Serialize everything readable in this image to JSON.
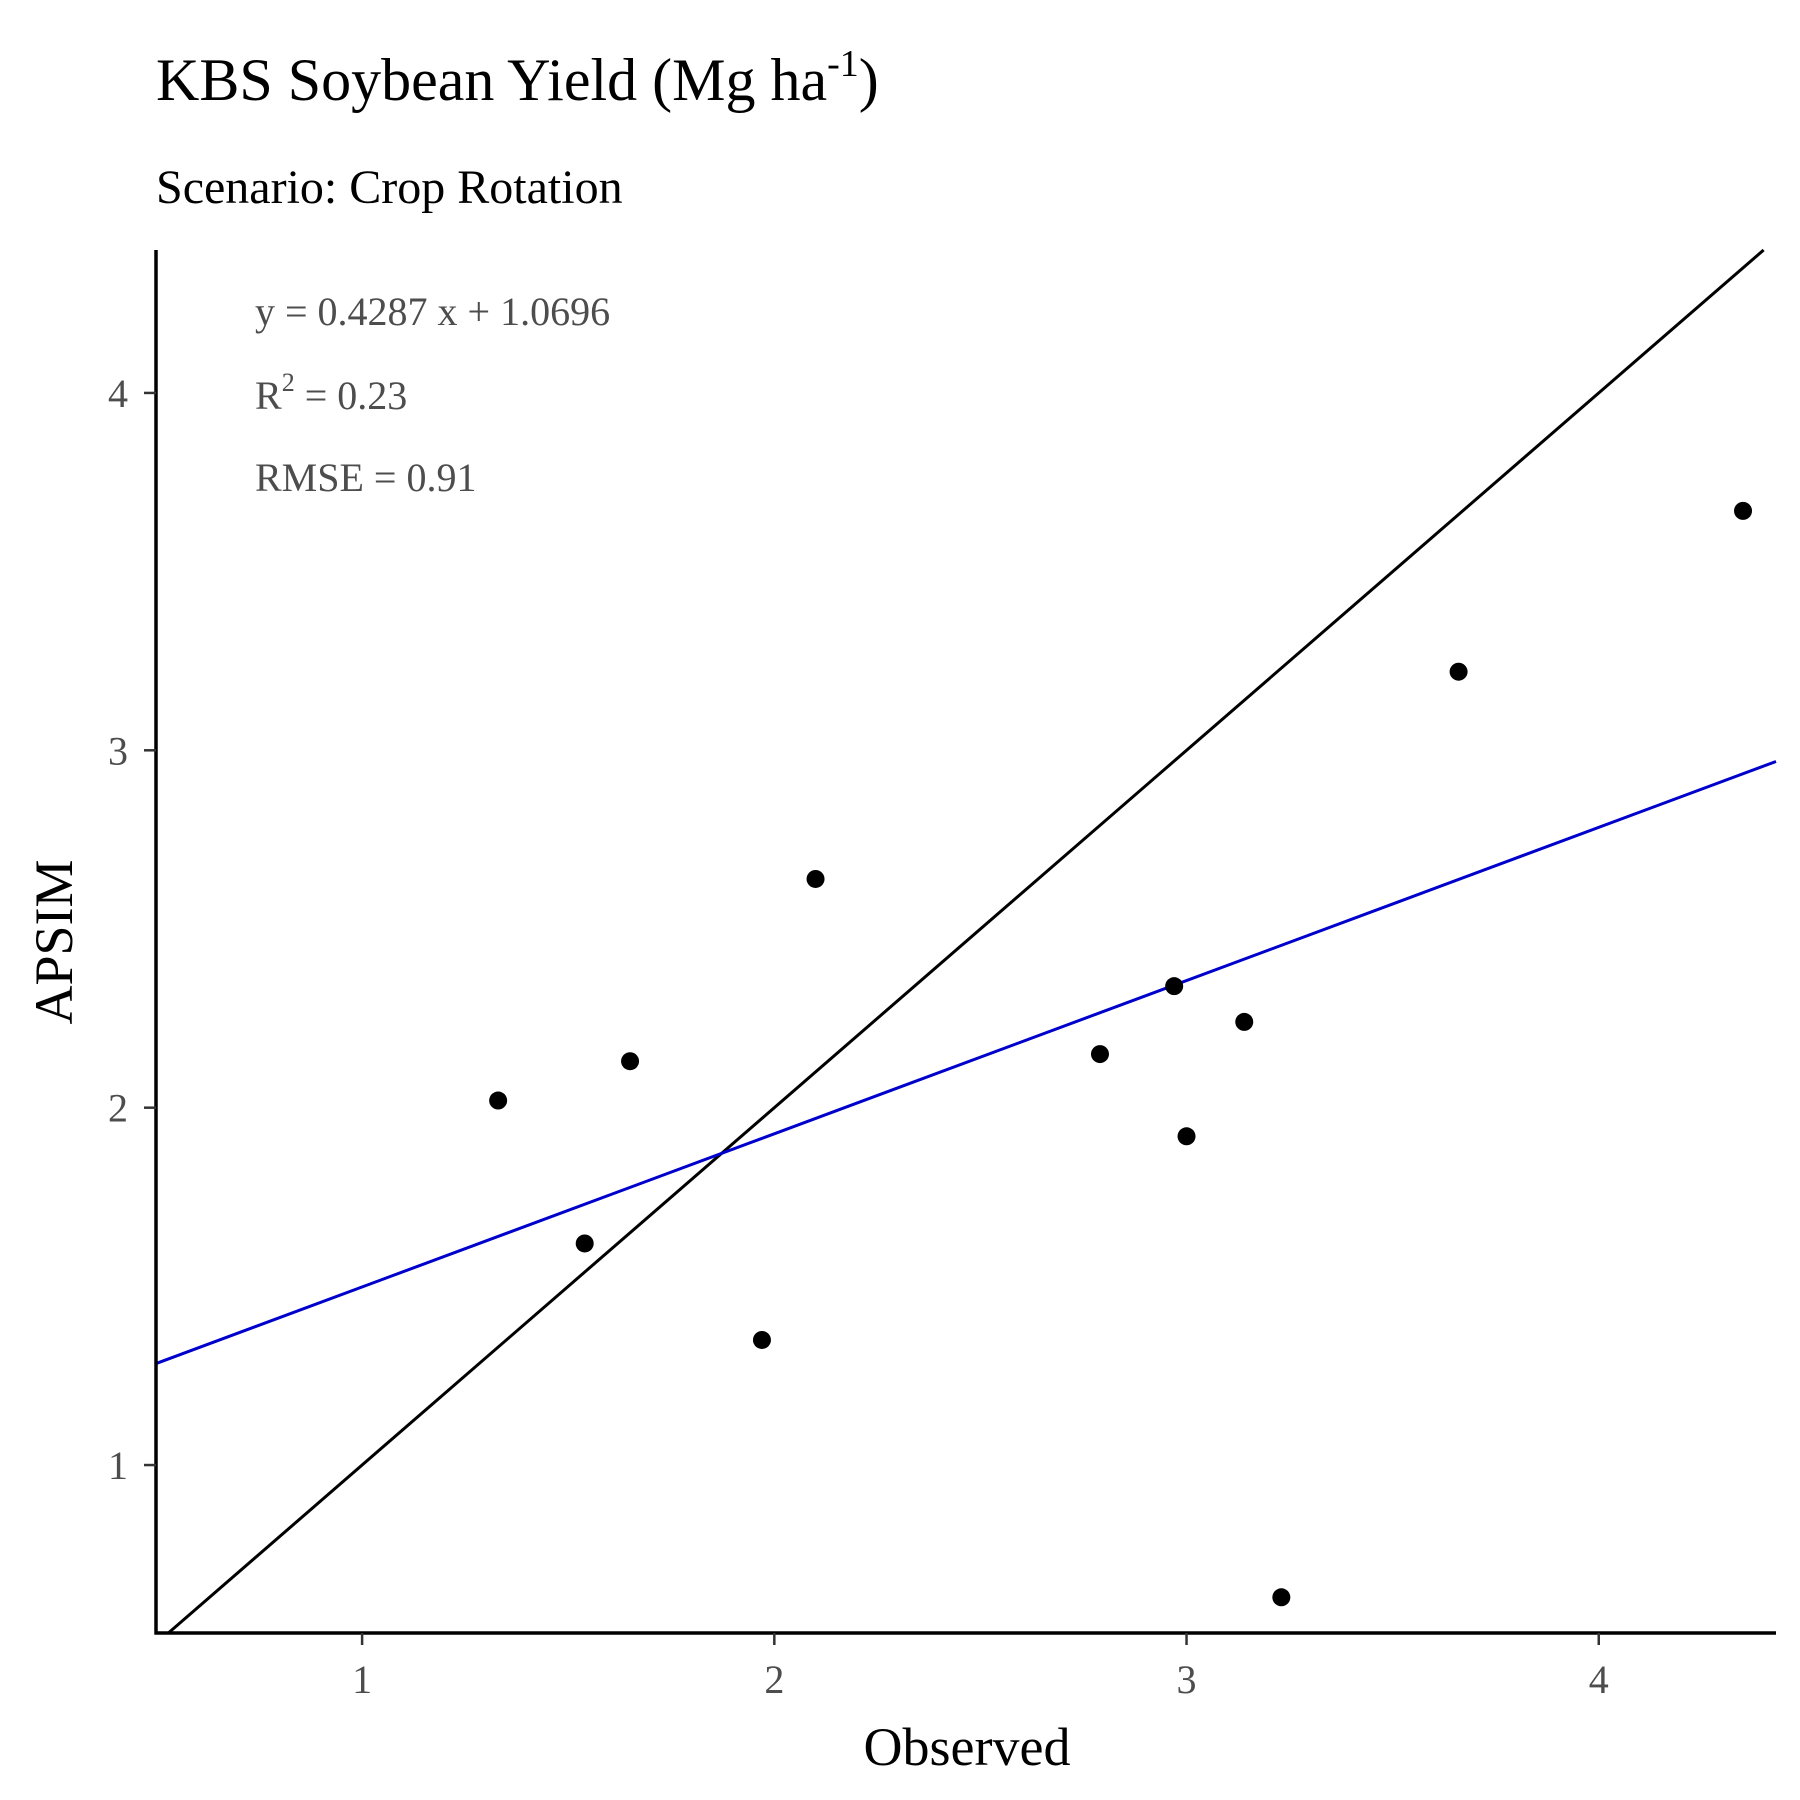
{
  "chart_data": {
    "type": "scatter",
    "title_main": "KBS Soybean Yield (Mg ha",
    "title_sup": "-1",
    "title_close": ")",
    "subtitle": "Scenario: Crop Rotation",
    "xlabel": "Observed",
    "ylabel": "APSIM",
    "xlim": [
      0.5,
      4.43
    ],
    "ylim": [
      0.53,
      4.4
    ],
    "xticks": [
      1,
      2,
      3,
      4
    ],
    "yticks": [
      1,
      2,
      3,
      4
    ],
    "grid": false,
    "annotations": {
      "equation": "y = 0.4287 x + 1.0696",
      "r2_prefix": "R",
      "r2_sup": "2",
      "r2_value": " = 0.23",
      "rmse": "RMSE = 0.91"
    },
    "points": [
      {
        "x": 1.33,
        "y": 2.02
      },
      {
        "x": 1.54,
        "y": 1.62
      },
      {
        "x": 1.65,
        "y": 2.13
      },
      {
        "x": 1.97,
        "y": 1.35
      },
      {
        "x": 2.1,
        "y": 2.64
      },
      {
        "x": 2.79,
        "y": 2.15
      },
      {
        "x": 2.97,
        "y": 2.34
      },
      {
        "x": 3.0,
        "y": 1.92
      },
      {
        "x": 3.14,
        "y": 2.24
      },
      {
        "x": 3.23,
        "y": 0.63
      },
      {
        "x": 3.66,
        "y": 3.22
      },
      {
        "x": 4.35,
        "y": 3.67
      }
    ],
    "lines": {
      "identity": {
        "slope": 1,
        "intercept": 0,
        "color": "#000000"
      },
      "regression": {
        "slope": 0.4287,
        "intercept": 1.0696,
        "color": "#0000cc"
      }
    },
    "point_color": "#000000"
  }
}
